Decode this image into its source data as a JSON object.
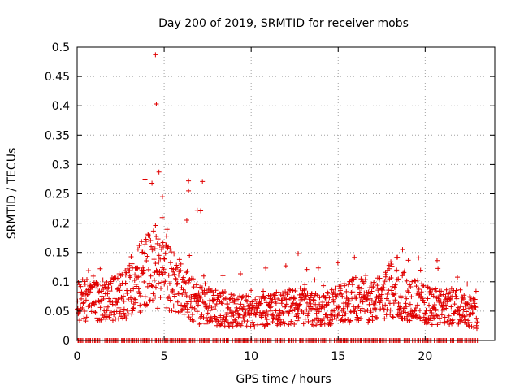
{
  "chart_data": {
    "type": "scatter",
    "title": "Day 200 of 2019, SRMTID for receiver mobs",
    "xlabel": "GPS time / hours",
    "ylabel": "SRMTID / TECUs",
    "xlim": [
      0,
      24
    ],
    "ylim": [
      0,
      0.5
    ],
    "x_ticks": [
      "0",
      "5",
      "10",
      "15",
      "20"
    ],
    "y_ticks": [
      "0",
      "0.05",
      "0.1",
      "0.15",
      "0.2",
      "0.25",
      "0.3",
      "0.35",
      "0.4",
      "0.45",
      "0.5"
    ],
    "grid": true,
    "marker": "+",
    "marker_color": "#e00000",
    "series": [
      {
        "name": "SRMTID",
        "x_range": [
          0,
          23.0
        ],
        "notable_points": [
          {
            "x": 4.5,
            "y": 0.487
          },
          {
            "x": 4.55,
            "y": 0.403
          },
          {
            "x": 4.7,
            "y": 0.287
          },
          {
            "x": 3.9,
            "y": 0.275
          },
          {
            "x": 4.3,
            "y": 0.268
          },
          {
            "x": 6.4,
            "y": 0.272
          },
          {
            "x": 7.2,
            "y": 0.271
          },
          {
            "x": 6.4,
            "y": 0.255
          },
          {
            "x": 4.9,
            "y": 0.245
          },
          {
            "x": 6.9,
            "y": 0.222
          },
          {
            "x": 7.1,
            "y": 0.221
          },
          {
            "x": 6.3,
            "y": 0.205
          },
          {
            "x": 4.5,
            "y": 0.196
          },
          {
            "x": 18.7,
            "y": 0.155
          },
          {
            "x": 12.7,
            "y": 0.148
          }
        ],
        "envelope": [
          {
            "x": 0,
            "y": 0.07
          },
          {
            "x": 1,
            "y": 0.065
          },
          {
            "x": 2,
            "y": 0.07
          },
          {
            "x": 3,
            "y": 0.085
          },
          {
            "x": 4,
            "y": 0.12
          },
          {
            "x": 5,
            "y": 0.11
          },
          {
            "x": 6,
            "y": 0.09
          },
          {
            "x": 7,
            "y": 0.06
          },
          {
            "x": 8,
            "y": 0.055
          },
          {
            "x": 10,
            "y": 0.05
          },
          {
            "x": 12,
            "y": 0.055
          },
          {
            "x": 13,
            "y": 0.06
          },
          {
            "x": 14,
            "y": 0.05
          },
          {
            "x": 15,
            "y": 0.06
          },
          {
            "x": 16,
            "y": 0.07
          },
          {
            "x": 17,
            "y": 0.065
          },
          {
            "x": 18,
            "y": 0.085
          },
          {
            "x": 19,
            "y": 0.075
          },
          {
            "x": 20,
            "y": 0.06
          },
          {
            "x": 21,
            "y": 0.055
          },
          {
            "x": 22,
            "y": 0.06
          },
          {
            "x": 23,
            "y": 0.045
          }
        ],
        "zero_points": true
      }
    ]
  }
}
